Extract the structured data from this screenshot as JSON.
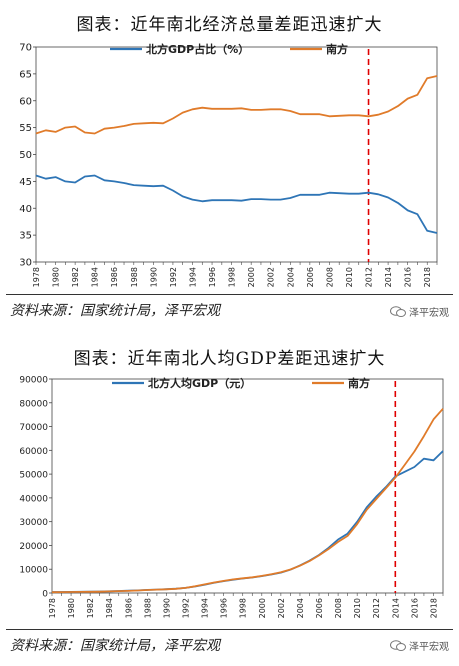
{
  "chart_data": [
    {
      "type": "line",
      "title": "图表：近年南北经济总量差距迅速扩大",
      "x_tick_labels": [
        "1978",
        "1980",
        "1982",
        "1984",
        "1986",
        "1988",
        "1990",
        "1992",
        "1994",
        "1996",
        "1998",
        "2000",
        "2002",
        "2004",
        "2006",
        "2008",
        "2010",
        "2012",
        "2014",
        "2016",
        "2018"
      ],
      "ylim": [
        30,
        70
      ],
      "y_ticks": [
        30,
        35,
        40,
        45,
        50,
        55,
        60,
        65,
        70
      ],
      "marker_year": 2012,
      "legend_position": "top",
      "series": [
        {
          "name": "北方GDP占比（%）",
          "color": "#2E75B6",
          "x": [
            1978,
            1979,
            1980,
            1981,
            1982,
            1983,
            1984,
            1985,
            1986,
            1987,
            1988,
            1989,
            1990,
            1991,
            1992,
            1993,
            1994,
            1995,
            1996,
            1997,
            1998,
            1999,
            2000,
            2001,
            2002,
            2003,
            2004,
            2005,
            2006,
            2007,
            2008,
            2009,
            2010,
            2011,
            2012,
            2013,
            2014,
            2015,
            2016,
            2017,
            2018,
            2019
          ],
          "values": [
            46.1,
            45.5,
            45.8,
            45.0,
            44.8,
            45.9,
            46.1,
            45.2,
            45.0,
            44.7,
            44.3,
            44.2,
            44.1,
            44.2,
            43.3,
            42.2,
            41.6,
            41.3,
            41.5,
            41.5,
            41.5,
            41.4,
            41.7,
            41.7,
            41.6,
            41.6,
            41.9,
            42.5,
            42.5,
            42.5,
            42.9,
            42.8,
            42.7,
            42.7,
            42.9,
            42.6,
            42.0,
            41.0,
            39.6,
            38.9,
            35.8,
            35.4
          ]
        },
        {
          "name": "南方",
          "color": "#E07B2A",
          "x": [
            1978,
            1979,
            1980,
            1981,
            1982,
            1983,
            1984,
            1985,
            1986,
            1987,
            1988,
            1989,
            1990,
            1991,
            1992,
            1993,
            1994,
            1995,
            1996,
            1997,
            1998,
            1999,
            2000,
            2001,
            2002,
            2003,
            2004,
            2005,
            2006,
            2007,
            2008,
            2009,
            2010,
            2011,
            2012,
            2013,
            2014,
            2015,
            2016,
            2017,
            2018,
            2019
          ],
          "values": [
            53.9,
            54.5,
            54.2,
            55.0,
            55.2,
            54.1,
            53.9,
            54.8,
            55.0,
            55.3,
            55.7,
            55.8,
            55.9,
            55.8,
            56.7,
            57.8,
            58.4,
            58.7,
            58.5,
            58.5,
            58.5,
            58.6,
            58.3,
            58.3,
            58.4,
            58.4,
            58.1,
            57.5,
            57.5,
            57.5,
            57.1,
            57.2,
            57.3,
            57.3,
            57.1,
            57.4,
            58.0,
            59.0,
            60.4,
            61.1,
            64.2,
            64.6
          ]
        }
      ]
    },
    {
      "type": "line",
      "title": "图表：近年南北人均GDP差距迅速扩大",
      "x_tick_labels": [
        "1978",
        "1980",
        "1982",
        "1984",
        "1986",
        "1988",
        "1990",
        "1992",
        "1994",
        "1996",
        "1998",
        "2000",
        "2002",
        "2004",
        "2006",
        "2008",
        "2010",
        "2012",
        "2014",
        "2016",
        "2018"
      ],
      "ylim": [
        0,
        90000
      ],
      "y_ticks": [
        0,
        10000,
        20000,
        30000,
        40000,
        50000,
        60000,
        70000,
        80000,
        90000
      ],
      "marker_year": 2014,
      "legend_position": "top",
      "series": [
        {
          "name": "北方人均GDP（元）",
          "color": "#2E75B6",
          "x": [
            1978,
            1979,
            1980,
            1981,
            1982,
            1983,
            1984,
            1985,
            1986,
            1987,
            1988,
            1989,
            1990,
            1991,
            1992,
            1993,
            1994,
            1995,
            1996,
            1997,
            1998,
            1999,
            2000,
            2001,
            2002,
            2003,
            2004,
            2005,
            2006,
            2007,
            2008,
            2009,
            2010,
            2011,
            2012,
            2013,
            2014,
            2015,
            2016,
            2017,
            2018,
            2019
          ],
          "values": [
            400,
            440,
            480,
            520,
            560,
            620,
            720,
            860,
            950,
            1080,
            1300,
            1450,
            1600,
            1800,
            2150,
            2750,
            3500,
            4300,
            5000,
            5600,
            6100,
            6500,
            7100,
            7800,
            8600,
            9800,
            11600,
            13600,
            16000,
            19000,
            22500,
            25000,
            30000,
            36000,
            40500,
            44500,
            49000,
            51000,
            53000,
            56500,
            55800,
            59700
          ]
        },
        {
          "name": "南方",
          "color": "#E07B2A",
          "x": [
            1978,
            1979,
            1980,
            1981,
            1982,
            1983,
            1984,
            1985,
            1986,
            1987,
            1988,
            1989,
            1990,
            1991,
            1992,
            1993,
            1994,
            1995,
            1996,
            1997,
            1998,
            1999,
            2000,
            2001,
            2002,
            2003,
            2004,
            2005,
            2006,
            2007,
            2008,
            2009,
            2010,
            2011,
            2012,
            2013,
            2014,
            2015,
            2016,
            2017,
            2018,
            2019
          ],
          "values": [
            350,
            390,
            430,
            470,
            510,
            560,
            670,
            820,
            900,
            1040,
            1280,
            1420,
            1560,
            1780,
            2150,
            2800,
            3600,
            4400,
            5100,
            5700,
            6200,
            6600,
            7200,
            7900,
            8700,
            9900,
            11500,
            13400,
            15800,
            18500,
            21500,
            24000,
            29000,
            35000,
            39500,
            44000,
            48500,
            54000,
            59500,
            66000,
            73000,
            77500
          ]
        }
      ]
    }
  ],
  "header1": {
    "title": "图表：近年南北经济总量差距迅速扩大"
  },
  "header2": {
    "title": "图表：近年南北人均GDP差距迅速扩大"
  },
  "footer1": {
    "source": "资料来源：国家统计局，泽平宏观",
    "watermark": "泽平宏观"
  },
  "footer2": {
    "source": "资料来源：国家统计局，泽平宏观",
    "watermark": "泽平宏观"
  }
}
